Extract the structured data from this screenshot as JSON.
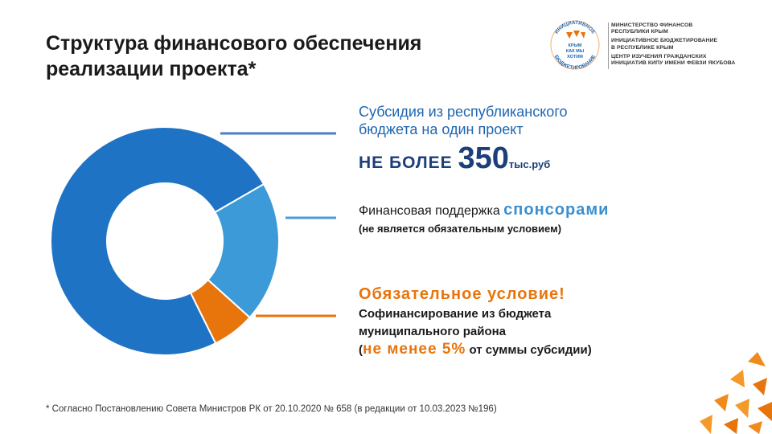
{
  "title": {
    "line1": "Структура финансового обеспечения",
    "line2": "реализации проекта*"
  },
  "logo": {
    "ring_top": "ИНИЦИАТИВНОЕ",
    "ring_bottom": "БЮДЖЕТИРОВАНИЕ",
    "center_line1": "КРЫМ",
    "center_line2": "КАК МЫ",
    "center_line3": "ХОТИМ"
  },
  "organizations": [
    [
      "МИНИСТЕРСТВО ФИНАНСОВ",
      "РЕСПУБЛИКИ КРЫМ"
    ],
    [
      "ИНИЦИАТИВНОЕ БЮДЖЕТИРОВАНИЕ",
      "В РЕСПУБЛИКЕ КРЫМ"
    ],
    [
      "ЦЕНТР ИЗУЧЕНИЯ ГРАЖДАНСКИХ",
      "ИНИЦИАТИВ КИПУ ИМЕНИ ФЕВЗИ ЯКУБОВА"
    ]
  ],
  "subsidy": {
    "line1": "Субсидия из республиканского",
    "line2": "бюджета на один проект",
    "prefix": "НЕ БОЛЕЕ ",
    "amount": "350",
    "unit": "тыс.руб"
  },
  "sponsors": {
    "lead": "Финансовая поддержка ",
    "highlight": "спонсорами",
    "note": "(не является обязательным условием)"
  },
  "cofinancing": {
    "heading": "Обязательное условие!",
    "line1": "Софинансирование из бюджета",
    "line2": "муниципального района",
    "open_paren": "(",
    "highlight": "не менее 5%",
    "tail": " от суммы субсидии)"
  },
  "footnote": "* Согласно Постановлению Совета Министров  РК от 20.10.2020 № 658 (в редакции от 10.03.2023  №196)",
  "chart_data": {
    "type": "donut",
    "categories": [
      "Субсидия из республиканского бюджета",
      "Финансовая поддержка спонсорами",
      "Софинансирование из бюджета муниципального района"
    ],
    "values": [
      74,
      20,
      6
    ],
    "colors": [
      "#1f73c4",
      "#3d9ad8",
      "#e8740c"
    ],
    "leader_colors": [
      "#4a7fc1",
      "#4f9ad6",
      "#e8740c"
    ]
  }
}
